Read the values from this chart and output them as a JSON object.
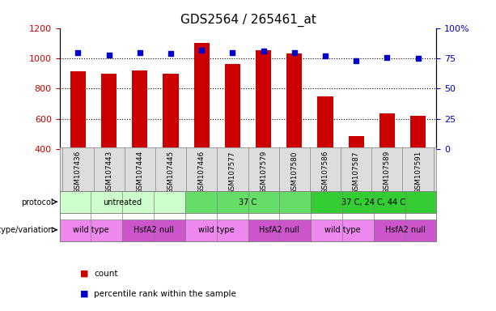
{
  "title": "GDS2564 / 265461_at",
  "samples": [
    "GSM107436",
    "GSM107443",
    "GSM107444",
    "GSM107445",
    "GSM107446",
    "GSM107577",
    "GSM107579",
    "GSM107580",
    "GSM107586",
    "GSM107587",
    "GSM107589",
    "GSM107591"
  ],
  "counts": [
    915,
    898,
    920,
    898,
    1100,
    960,
    1055,
    1032,
    748,
    487,
    635,
    620
  ],
  "percentiles": [
    80,
    78,
    80,
    79,
    82,
    80,
    81,
    80,
    77,
    73,
    76,
    75
  ],
  "ylim_left": [
    400,
    1200
  ],
  "ylim_right": [
    0,
    100
  ],
  "yticks_left": [
    400,
    600,
    800,
    1000,
    1200
  ],
  "yticks_right": [
    0,
    25,
    50,
    75,
    100
  ],
  "ytick_right_labels": [
    "0",
    "25",
    "50",
    "75",
    "100%"
  ],
  "bar_color": "#cc0000",
  "dot_color": "#0000cc",
  "protocol_groups": [
    {
      "label": "untreated",
      "start": 0,
      "end": 4,
      "color": "#ccffcc"
    },
    {
      "label": "37 C",
      "start": 4,
      "end": 8,
      "color": "#66dd66"
    },
    {
      "label": "37 C, 24 C, 44 C",
      "start": 8,
      "end": 12,
      "color": "#33cc33"
    }
  ],
  "genotype_groups": [
    {
      "label": "wild type",
      "start": 0,
      "end": 2,
      "color": "#ee88ee"
    },
    {
      "label": "HsfA2 null",
      "start": 2,
      "end": 4,
      "color": "#cc55cc"
    },
    {
      "label": "wild type",
      "start": 4,
      "end": 6,
      "color": "#ee88ee"
    },
    {
      "label": "HsfA2 null",
      "start": 6,
      "end": 8,
      "color": "#cc55cc"
    },
    {
      "label": "wild type",
      "start": 8,
      "end": 10,
      "color": "#ee88ee"
    },
    {
      "label": "HsfA2 null",
      "start": 10,
      "end": 12,
      "color": "#cc55cc"
    }
  ],
  "legend_count_color": "#cc0000",
  "legend_dot_color": "#0000cc",
  "row_label_protocol": "protocol",
  "row_label_genotype": "genotype/variation",
  "background_color": "#ffffff",
  "grid_color": "#000000",
  "tick_label_color_left": "#cc0000",
  "tick_label_color_right": "#0000cc"
}
